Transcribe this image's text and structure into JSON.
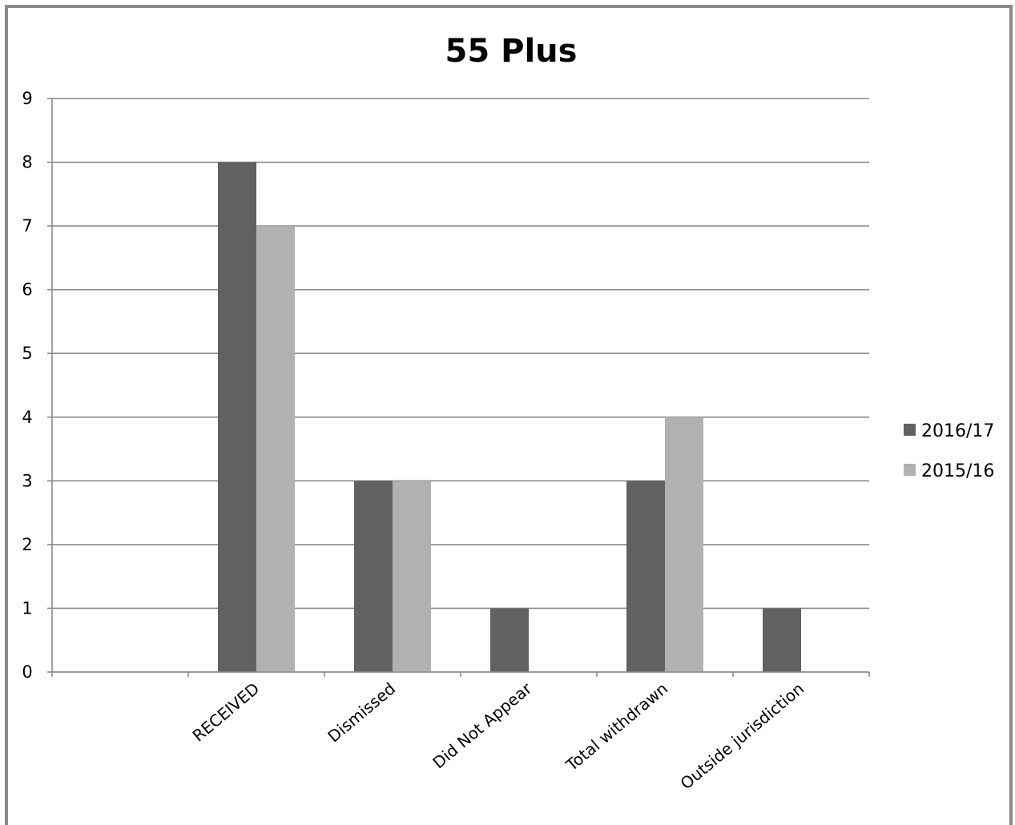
{
  "chart_data": {
    "type": "bar",
    "title": "55 Plus",
    "categories": [
      "",
      "RECEIVED",
      "Dismissed",
      "Did Not Appear",
      "Total withdrawn",
      "Outside jurisdiction"
    ],
    "series": [
      {
        "name": "2016/17",
        "values": [
          0,
          8,
          3,
          1,
          3,
          1
        ],
        "color": "#616161"
      },
      {
        "name": "2015/16",
        "values": [
          0,
          7,
          3,
          0,
          4,
          0
        ],
        "color": "#b1b1b1"
      }
    ],
    "ylim": [
      0,
      9
    ],
    "yticks": [
      "0",
      "1",
      "2",
      "3",
      "4",
      "5",
      "6",
      "7",
      "8",
      "9"
    ],
    "grid": true,
    "legend_position": "right",
    "xlabel": "",
    "ylabel": ""
  }
}
